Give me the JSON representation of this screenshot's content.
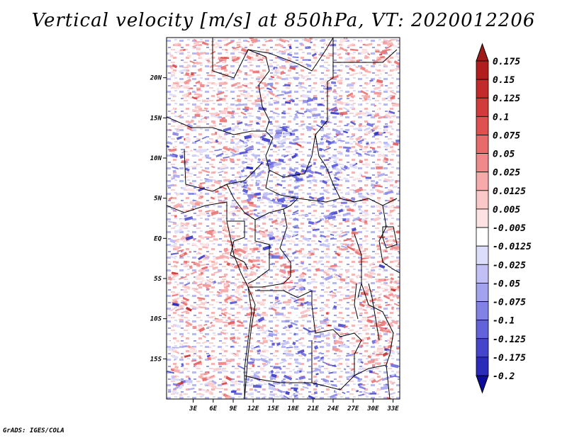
{
  "title": "Vertical velocity [m/s] at 850hPa, VT: 2020012206",
  "credit": "GrADS: IGES/COLA",
  "map": {
    "lon_range": [
      -1,
      34
    ],
    "lat_range": [
      -20,
      25
    ],
    "lat_ticks": [
      {
        "value": 20,
        "label": "20N"
      },
      {
        "value": 15,
        "label": "15N"
      },
      {
        "value": 10,
        "label": "10N"
      },
      {
        "value": 5,
        "label": "5N"
      },
      {
        "value": 0,
        "label": "EQ"
      },
      {
        "value": -5,
        "label": "5S"
      },
      {
        "value": -10,
        "label": "10S"
      },
      {
        "value": -15,
        "label": "15S"
      }
    ],
    "lon_ticks": [
      {
        "value": 3,
        "label": "3E"
      },
      {
        "value": 6,
        "label": "6E"
      },
      {
        "value": 9,
        "label": "9E"
      },
      {
        "value": 12,
        "label": "12E"
      },
      {
        "value": 15,
        "label": "15E"
      },
      {
        "value": 18,
        "label": "18E"
      },
      {
        "value": 21,
        "label": "21E"
      },
      {
        "value": 24,
        "label": "24E"
      },
      {
        "value": 27,
        "label": "27E"
      },
      {
        "value": 30,
        "label": "30E"
      },
      {
        "value": 33,
        "label": "33E"
      }
    ]
  },
  "colorbar": {
    "levels": [
      {
        "label": "0.175",
        "color": "#b21e1e"
      },
      {
        "label": "0.15",
        "color": "#c32a2a"
      },
      {
        "label": "0.125",
        "color": "#d33b3b"
      },
      {
        "label": "0.1",
        "color": "#e05050"
      },
      {
        "label": "0.075",
        "color": "#e86a6a"
      },
      {
        "label": "0.05",
        "color": "#f08a8a"
      },
      {
        "label": "0.025",
        "color": "#f6aaaa"
      },
      {
        "label": "0.0125",
        "color": "#fac8c8"
      },
      {
        "label": "0.005",
        "color": "#fde2e2"
      },
      {
        "label": "-0.005",
        "color": "#ffffff"
      },
      {
        "label": "-0.0125",
        "color": "#dcdcfb"
      },
      {
        "label": "-0.025",
        "color": "#c0c0f6"
      },
      {
        "label": "-0.05",
        "color": "#a2a2ef"
      },
      {
        "label": "-0.075",
        "color": "#8282e6"
      },
      {
        "label": "-0.1",
        "color": "#6262da"
      },
      {
        "label": "-0.125",
        "color": "#4545cc"
      },
      {
        "label": "-0.175",
        "color": "#2a2abb"
      },
      {
        "label": "-0.2",
        "color": "#1515a6"
      }
    ],
    "over_color": "#a01818",
    "under_color": "#0c0c96"
  }
}
